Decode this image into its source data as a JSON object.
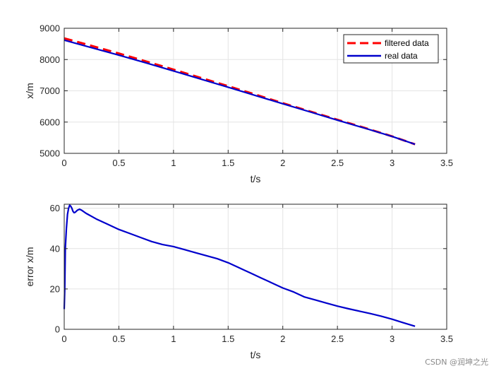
{
  "chart_data": [
    {
      "type": "line",
      "title": "",
      "xlabel": "t/s",
      "ylabel": "x/m",
      "xlim": [
        0,
        3.5
      ],
      "ylim": [
        5000,
        9000
      ],
      "xticks": [
        "0",
        "0.5",
        "1",
        "1.5",
        "2",
        "2.5",
        "3",
        "3.5"
      ],
      "yticks": [
        "5000",
        "6000",
        "7000",
        "8000",
        "9000"
      ],
      "grid": true,
      "legend": "top-right",
      "series": [
        {
          "name": "filtered data",
          "color": "#ff0000",
          "style": "dashed",
          "x": [
            0,
            0.25,
            0.5,
            0.75,
            1.0,
            1.25,
            1.5,
            1.75,
            2.0,
            2.25,
            2.5,
            2.75,
            3.0,
            3.21
          ],
          "y": [
            8680,
            8440,
            8195,
            7940,
            7680,
            7415,
            7150,
            6880,
            6605,
            6340,
            6075,
            5815,
            5545,
            5290
          ]
        },
        {
          "name": "real data",
          "color": "#0000cc",
          "style": "solid",
          "x": [
            0,
            0.25,
            0.5,
            0.75,
            1.0,
            1.25,
            1.5,
            1.75,
            2.0,
            2.25,
            2.5,
            2.75,
            3.0,
            3.21
          ],
          "y": [
            8620,
            8380,
            8140,
            7890,
            7635,
            7375,
            7115,
            6850,
            6585,
            6325,
            6060,
            5805,
            5540,
            5290
          ]
        }
      ]
    },
    {
      "type": "line",
      "title": "",
      "xlabel": "t/s",
      "ylabel": "error x/m",
      "xlim": [
        0,
        3.5
      ],
      "ylim": [
        0,
        62
      ],
      "xticks": [
        "0",
        "0.5",
        "1",
        "1.5",
        "2",
        "2.5",
        "3",
        "3.5"
      ],
      "yticks": [
        "0",
        "20",
        "40",
        "60"
      ],
      "grid": true,
      "series": [
        {
          "color": "#0000cc",
          "style": "solid",
          "x": [
            0,
            0.005,
            0.01,
            0.02,
            0.03,
            0.04,
            0.05,
            0.06,
            0.07,
            0.08,
            0.09,
            0.1,
            0.12,
            0.14,
            0.16,
            0.2,
            0.3,
            0.4,
            0.5,
            0.6,
            0.7,
            0.8,
            0.9,
            1.0,
            1.1,
            1.2,
            1.3,
            1.4,
            1.5,
            1.6,
            1.7,
            1.8,
            1.9,
            2.0,
            2.1,
            2.2,
            2.3,
            2.4,
            2.5,
            2.6,
            2.7,
            2.8,
            2.9,
            3.0,
            3.1,
            3.21
          ],
          "y": [
            10,
            20,
            40,
            50,
            57,
            60,
            61.5,
            61,
            60,
            58.5,
            57.8,
            58,
            59,
            59.5,
            59,
            57.5,
            54.5,
            52,
            49.5,
            47.5,
            45.5,
            43.5,
            42,
            41,
            39.5,
            38,
            36.5,
            35,
            33,
            30.5,
            28,
            25.5,
            23,
            20.5,
            18.5,
            16,
            14.5,
            13,
            11.5,
            10.2,
            9,
            7.8,
            6.5,
            5,
            3.3,
            1.5
          ]
        }
      ]
    }
  ],
  "watermark": "CSDN @润坤之光"
}
